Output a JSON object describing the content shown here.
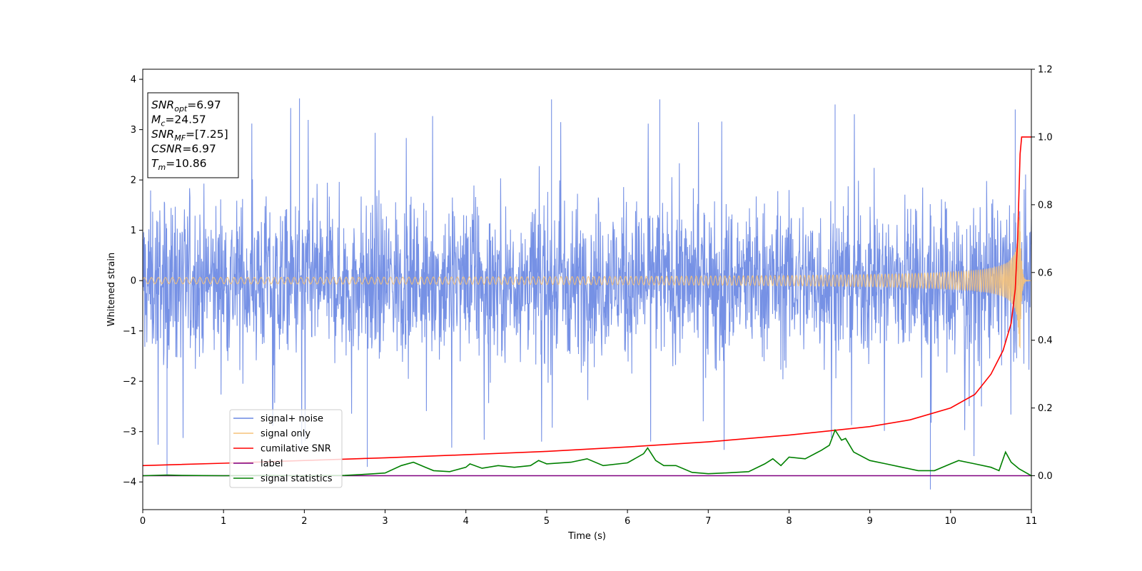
{
  "chart_data": {
    "type": "line",
    "xlabel": "Time (s)",
    "ylabel": "Whitened strain",
    "xlim": [
      0,
      11
    ],
    "ylim_left": [
      -4.55,
      4.2
    ],
    "ylim_right": [
      -0.1,
      1.2
    ],
    "x_ticks": [
      0,
      1,
      2,
      3,
      4,
      5,
      6,
      7,
      8,
      9,
      10,
      11
    ],
    "y_ticks_left": [
      -4,
      -3,
      -2,
      -1,
      0,
      1,
      2,
      3,
      4
    ],
    "y_ticks_right": [
      0.0,
      0.2,
      0.4,
      0.6,
      0.8,
      1.0,
      1.2
    ],
    "y_tick_labels_left": [
      "−4",
      "−3",
      "−2",
      "−1",
      "0",
      "1",
      "2",
      "3",
      "4"
    ],
    "y_tick_labels_right": [
      "0.0",
      "0.2",
      "0.4",
      "0.6",
      "0.8",
      "1.0",
      "1.2"
    ],
    "legend_position": "lower-left",
    "grid": false,
    "stats_box": {
      "lines": [
        {
          "sym": "SNR",
          "sub": "opt",
          "text": "=6.97"
        },
        {
          "sym": "M",
          "sub": "c",
          "text": "=24.57"
        },
        {
          "sym": "SNR",
          "sub": "MF",
          "text": "=[7.25]"
        },
        {
          "sym": "CSNR",
          "sub": "",
          "text": "=6.97"
        },
        {
          "sym": "T",
          "sub": "m",
          "text": "=10.86"
        }
      ]
    },
    "series": [
      {
        "name": "signal+ noise",
        "axis": "left",
        "color": "#6a88e3",
        "style": "noise",
        "noise_envelope": {
          "lower": -2.5,
          "upper": 2.4,
          "spikes_max": 3.65,
          "spikes_min": -4.15
        },
        "notable_spikes": [
          {
            "x": 0.3,
            "y": -3.85
          },
          {
            "x": 1.94,
            "y": 3.62
          },
          {
            "x": 2.78,
            "y": -3.7
          },
          {
            "x": 5.06,
            "y": 3.6
          },
          {
            "x": 6.4,
            "y": 3.6
          },
          {
            "x": 8.57,
            "y": 3.5
          },
          {
            "x": 9.75,
            "y": -4.15
          },
          {
            "x": 10.8,
            "y": 3.4
          }
        ]
      },
      {
        "name": "signal only",
        "axis": "left",
        "color": "#f5c27a",
        "style": "chirp",
        "chirp": {
          "amplitude_start": 0.02,
          "amplitude_peak": 1.4,
          "merger_time": 10.86
        }
      },
      {
        "name": "cumilative SNR",
        "axis": "right",
        "color": "#ff0000",
        "x": [
          0,
          1,
          2,
          3,
          4,
          5,
          6,
          7,
          8,
          9,
          9.5,
          10,
          10.3,
          10.5,
          10.65,
          10.75,
          10.8,
          10.83,
          10.86,
          10.88,
          11
        ],
        "y": [
          0.03,
          0.037,
          0.045,
          0.053,
          0.062,
          0.072,
          0.085,
          0.1,
          0.12,
          0.145,
          0.165,
          0.2,
          0.24,
          0.3,
          0.37,
          0.45,
          0.55,
          0.7,
          0.95,
          1.0,
          1.0
        ]
      },
      {
        "name": "label",
        "axis": "right",
        "color": "#800080",
        "x": [
          0,
          11
        ],
        "y": [
          0.0,
          0.0
        ]
      },
      {
        "name": "signal statistics",
        "axis": "right",
        "color": "#008000",
        "x": [
          0,
          0.3,
          0.5,
          1.0,
          1.5,
          2.0,
          2.5,
          2.8,
          3.0,
          3.2,
          3.35,
          3.5,
          3.6,
          3.8,
          4.0,
          4.05,
          4.2,
          4.4,
          4.6,
          4.8,
          4.9,
          5.0,
          5.3,
          5.5,
          5.7,
          6.0,
          6.2,
          6.25,
          6.35,
          6.45,
          6.6,
          6.8,
          7.0,
          7.2,
          7.5,
          7.7,
          7.8,
          7.9,
          8.0,
          8.2,
          8.4,
          8.5,
          8.57,
          8.65,
          8.7,
          8.8,
          9.0,
          9.2,
          9.4,
          9.6,
          9.8,
          10.0,
          10.1,
          10.3,
          10.5,
          10.6,
          10.68,
          10.75,
          10.85,
          11.0
        ],
        "y": [
          0.0,
          0.002,
          0.001,
          0.0,
          0.001,
          0.0,
          0.001,
          0.005,
          0.008,
          0.03,
          0.04,
          0.025,
          0.015,
          0.012,
          0.025,
          0.035,
          0.022,
          0.03,
          0.025,
          0.03,
          0.045,
          0.035,
          0.04,
          0.05,
          0.03,
          0.038,
          0.065,
          0.082,
          0.045,
          0.03,
          0.03,
          0.01,
          0.006,
          0.008,
          0.012,
          0.035,
          0.05,
          0.03,
          0.055,
          0.05,
          0.075,
          0.09,
          0.135,
          0.105,
          0.11,
          0.07,
          0.045,
          0.035,
          0.025,
          0.015,
          0.015,
          0.035,
          0.045,
          0.035,
          0.025,
          0.015,
          0.07,
          0.04,
          0.02,
          0.0
        ]
      }
    ]
  }
}
